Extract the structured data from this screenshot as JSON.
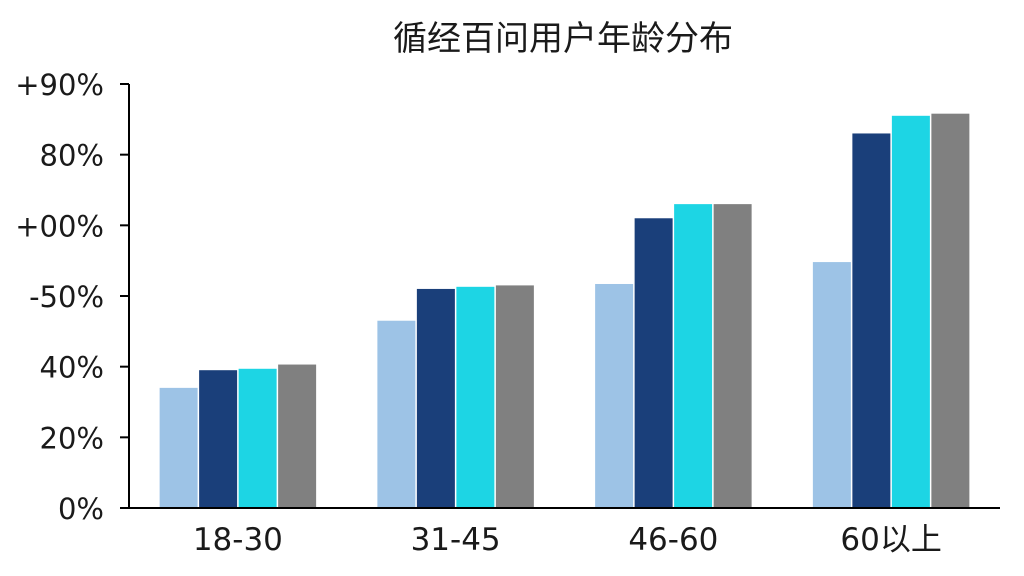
{
  "chart_data": {
    "type": "bar",
    "title": "循经百问用户年龄分布",
    "categories": [
      "18-30",
      "31-45",
      "46-60",
      "60以上"
    ],
    "y_tick_labels": [
      "0%",
      "20%",
      "40%",
      "-50%",
      "+00%",
      "80%",
      "+90%"
    ],
    "y_tick_values": [
      0,
      1,
      2,
      3,
      4,
      5,
      6
    ],
    "ylim": [
      0,
      6
    ],
    "grid": false,
    "series": [
      {
        "values": [
          1.7,
          2.65,
          3.17,
          3.48
        ]
      },
      {
        "values": [
          1.95,
          3.1,
          4.1,
          5.3
        ]
      },
      {
        "values": [
          1.97,
          3.13,
          4.3,
          5.55
        ]
      },
      {
        "values": [
          2.03,
          3.15,
          4.3,
          5.58
        ]
      }
    ],
    "colors": [
      "#9dc3e6",
      "#1a3f7a",
      "#1dd5e4",
      "#808080"
    ]
  }
}
